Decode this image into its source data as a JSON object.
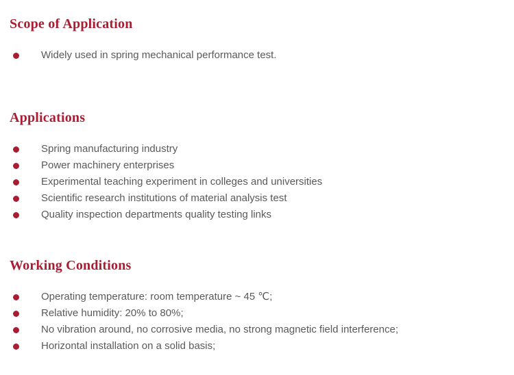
{
  "page": {
    "background_color": "#ffffff",
    "accent_color": "#a91d33",
    "body_text_color": "#595959"
  },
  "sections": [
    {
      "heading": "Scope of Application",
      "items": [
        "Widely used in spring mechanical performance test."
      ]
    },
    {
      "heading": "Applications",
      "items": [
        "Spring manufacturing industry",
        "Power machinery enterprises",
        "Experimental teaching experiment in colleges and universities",
        "Scientific research institutions of material analysis test",
        "Quality inspection departments quality testing links"
      ]
    },
    {
      "heading": "Working Conditions",
      "items": [
        "Operating temperature: room temperature ~ 45 ℃;",
        "Relative humidity: 20% to 80%;",
        "No vibration around, no corrosive media, no strong magnetic field interference;",
        "Horizontal installation on a solid basis;"
      ]
    }
  ]
}
